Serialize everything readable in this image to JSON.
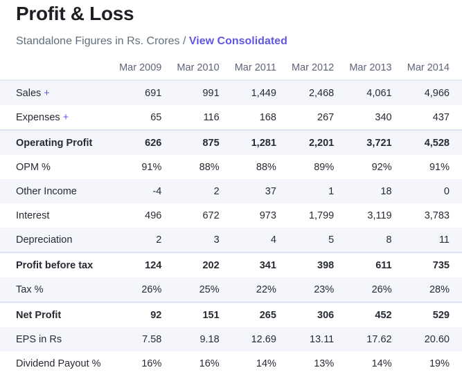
{
  "title": "Profit & Loss",
  "subtitle": "Standalone Figures in Rs. Crores / ",
  "link": "View Consolidated",
  "accent": "#6157e0",
  "columns": [
    "Mar 2009",
    "Mar 2010",
    "Mar 2011",
    "Mar 2012",
    "Mar 2013",
    "Mar 2014"
  ],
  "rows": [
    {
      "label": "Sales",
      "expand": "+",
      "values": [
        "691",
        "991",
        "1,449",
        "2,468",
        "4,061",
        "4,966"
      ]
    },
    {
      "label": "Expenses",
      "expand": "+",
      "values": [
        "65",
        "116",
        "168",
        "267",
        "340",
        "437"
      ]
    },
    {
      "label": "Operating Profit",
      "bold": true,
      "top": true,
      "values": [
        "626",
        "875",
        "1,281",
        "2,201",
        "3,721",
        "4,528"
      ]
    },
    {
      "label": "OPM %",
      "values": [
        "91%",
        "88%",
        "88%",
        "89%",
        "92%",
        "91%"
      ]
    },
    {
      "label": "Other Income",
      "values": [
        "-4",
        "2",
        "37",
        "1",
        "18",
        "0"
      ]
    },
    {
      "label": "Interest",
      "values": [
        "496",
        "672",
        "973",
        "1,799",
        "3,119",
        "3,783"
      ]
    },
    {
      "label": "Depreciation",
      "values": [
        "2",
        "3",
        "4",
        "5",
        "8",
        "11"
      ]
    },
    {
      "label": "Profit before tax",
      "bold": true,
      "top": true,
      "values": [
        "124",
        "202",
        "341",
        "398",
        "611",
        "735"
      ]
    },
    {
      "label": "Tax %",
      "values": [
        "26%",
        "25%",
        "22%",
        "23%",
        "26%",
        "28%"
      ]
    },
    {
      "label": "Net Profit",
      "bold": true,
      "top": true,
      "values": [
        "92",
        "151",
        "265",
        "306",
        "452",
        "529"
      ]
    },
    {
      "label": "EPS in Rs",
      "values": [
        "7.58",
        "9.18",
        "12.69",
        "13.11",
        "17.62",
        "20.60"
      ]
    },
    {
      "label": "Dividend Payout %",
      "values": [
        "16%",
        "16%",
        "14%",
        "13%",
        "14%",
        "19%"
      ]
    }
  ]
}
